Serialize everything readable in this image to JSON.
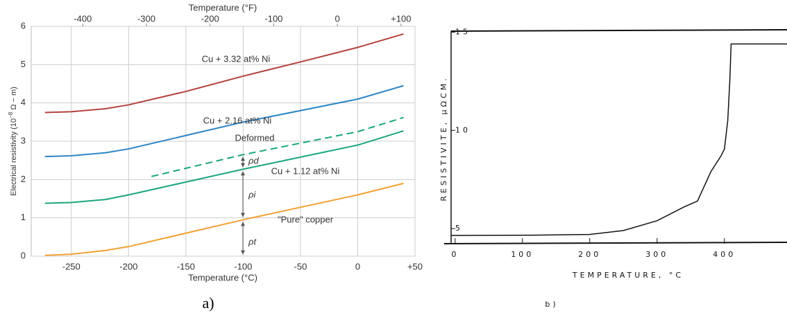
{
  "chart_data": [
    {
      "type": "line",
      "xlabel": "Temperature (°C)",
      "x2label": "Temperature (°F)",
      "ylabel": [
        "Electrical resistivity (10",
        "−8",
        " Ω − m)"
      ],
      "xlim": [
        -285,
        50
      ],
      "xticks": [
        -250,
        -200,
        -150,
        -100,
        -50,
        0,
        {
          "value": 50,
          "label": "+50"
        }
      ],
      "x2lim": [
        -481,
        122
      ],
      "x2ticks": [
        -400,
        -300,
        -200,
        -100,
        0,
        {
          "value": 100,
          "label": "+100"
        }
      ],
      "ylim": [
        0,
        6
      ],
      "yticks": [
        0,
        1,
        2,
        3,
        4,
        5,
        6
      ],
      "grid": true,
      "series": [
        {
          "name": "Cu + 3.32 at% Ni",
          "color": "#b5403a",
          "x": [
            -273,
            -250,
            -220,
            -200,
            -150,
            -100,
            -50,
            0,
            40
          ],
          "values": [
            3.75,
            3.77,
            3.85,
            3.95,
            4.3,
            4.7,
            5.07,
            5.45,
            5.8
          ]
        },
        {
          "name": "Cu + 2.16 at% Ni",
          "color": "#2b84c6",
          "x": [
            -273,
            -250,
            -220,
            -200,
            -100,
            0,
            40
          ],
          "values": [
            2.6,
            2.62,
            2.7,
            2.8,
            3.5,
            4.1,
            4.45
          ]
        },
        {
          "name": "Deformed",
          "color": "#1aa67e",
          "dashed": true,
          "x": [
            -180,
            -100,
            0,
            40
          ],
          "values": [
            2.08,
            2.65,
            3.25,
            3.62
          ]
        },
        {
          "name": "Cu + 1.12 at% Ni",
          "color": "#1aa67e",
          "x": [
            -273,
            -250,
            -220,
            -200,
            -100,
            0,
            40
          ],
          "values": [
            1.38,
            1.4,
            1.48,
            1.6,
            2.27,
            2.9,
            3.27
          ]
        },
        {
          "name": "\"Pure\" copper",
          "color": "#f5a033",
          "x": [
            -273,
            -250,
            -220,
            -200,
            -100,
            0,
            40
          ],
          "values": [
            0.02,
            0.05,
            0.15,
            0.25,
            0.95,
            1.6,
            1.9
          ]
        }
      ],
      "annotations": [
        "ρd",
        "ρi",
        "ρt"
      ],
      "panel_label": "a)"
    },
    {
      "type": "line",
      "xlabel": "TEMPERATURE,   °C",
      "ylabel": [
        "RESISTIVITE,  µΩCM."
      ],
      "xlim": [
        -6,
        493
      ],
      "xticks": [
        0,
        100,
        200,
        300,
        400
      ],
      "ylim": [
        4.23,
        15.05
      ],
      "yticks": [
        5,
        10,
        15
      ],
      "grid": false,
      "series": [
        {
          "name": null,
          "color": "#111111",
          "x": [
            -6,
            0,
            100,
            200,
            250,
            300,
            340,
            360,
            380,
            395,
            400,
            405,
            408,
            410,
            493
          ],
          "values": [
            4.65,
            4.65,
            4.66,
            4.7,
            4.9,
            5.4,
            6.1,
            6.4,
            7.9,
            8.7,
            9.05,
            10.5,
            12.5,
            14.4,
            14.4
          ]
        }
      ],
      "annotations": [],
      "panel_label": "b)"
    }
  ]
}
